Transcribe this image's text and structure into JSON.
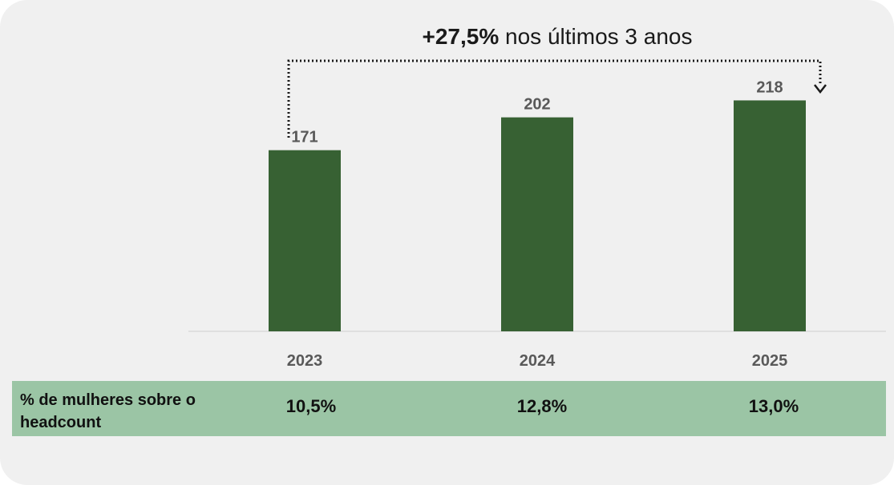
{
  "headline": {
    "strong": "+27,5%",
    "rest": " nos últimos 3 anos"
  },
  "chart_data": {
    "type": "bar",
    "categories": [
      "2023",
      "2024",
      "2025"
    ],
    "values": [
      171,
      202,
      218
    ],
    "data_labels": [
      "171",
      "202",
      "218"
    ],
    "ylim": [
      0,
      275
    ],
    "title": "",
    "xlabel": "",
    "ylabel": "",
    "grid": false,
    "bar_color": "#376133",
    "text_color": "#595959",
    "baseline_color": "#d9d9d9"
  },
  "summary": {
    "label": "% de mulheres sobre o headcount",
    "values": [
      "10,5%",
      "12,8%",
      "13,0%"
    ],
    "band_color": "#9bc5a5"
  }
}
